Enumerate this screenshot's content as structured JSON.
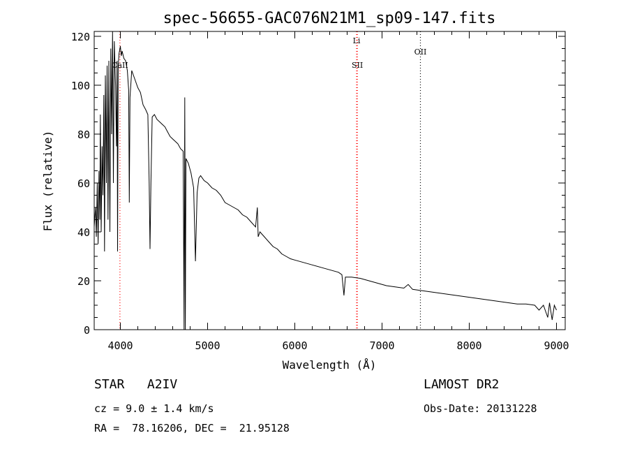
{
  "chart_data": {
    "type": "line",
    "title": "spec-56655-GAC076N21M1_sp09-147.fits",
    "xlabel": "Wavelength (Å)",
    "ylabel": "Flux (relative)",
    "xlim": [
      3700,
      9100
    ],
    "ylim": [
      0,
      122
    ],
    "xticks": [
      4000,
      5000,
      6000,
      7000,
      8000,
      9000
    ],
    "yticks": [
      0,
      20,
      40,
      60,
      80,
      100,
      120
    ],
    "grid": false,
    "line_colors": {
      "spectrum": "#000000",
      "marker": "#ff0000",
      "marker_ref": "#000000"
    },
    "line_markers": [
      {
        "label": "CaII",
        "x": 3995,
        "style": "red-dotted"
      },
      {
        "label": "Li",
        "x": 6708,
        "style": "red-dotted"
      },
      {
        "label": "SII",
        "x": 6717,
        "style": "red-dotted"
      },
      {
        "label": "OII",
        "x": 7440,
        "style": "black-dotted"
      }
    ],
    "series": [
      {
        "points": [
          [
            3700,
            42
          ],
          [
            3715,
            50
          ],
          [
            3725,
            38
          ],
          [
            3735,
            60
          ],
          [
            3745,
            35
          ],
          [
            3755,
            65
          ],
          [
            3765,
            45
          ],
          [
            3770,
            88
          ],
          [
            3780,
            40
          ],
          [
            3790,
            75
          ],
          [
            3800,
            55
          ],
          [
            3810,
            96
          ],
          [
            3818,
            32
          ],
          [
            3828,
            104
          ],
          [
            3840,
            60
          ],
          [
            3848,
            108
          ],
          [
            3858,
            45
          ],
          [
            3868,
            110
          ],
          [
            3880,
            40
          ],
          [
            3890,
            115
          ],
          [
            3900,
            80
          ],
          [
            3910,
            122
          ],
          [
            3920,
            60
          ],
          [
            3930,
            118
          ],
          [
            3945,
            100
          ],
          [
            3955,
            75
          ],
          [
            3962,
            110
          ],
          [
            3968,
            32
          ],
          [
            3975,
            108
          ],
          [
            3985,
            113
          ],
          [
            4000,
            116
          ],
          [
            4010,
            112
          ],
          [
            4020,
            114
          ],
          [
            4040,
            111
          ],
          [
            4060,
            110
          ],
          [
            4080,
            106
          ],
          [
            4095,
            98
          ],
          [
            4102,
            52
          ],
          [
            4110,
            95
          ],
          [
            4130,
            106
          ],
          [
            4150,
            104
          ],
          [
            4170,
            102
          ],
          [
            4200,
            99
          ],
          [
            4230,
            97
          ],
          [
            4260,
            92
          ],
          [
            4290,
            90
          ],
          [
            4315,
            88
          ],
          [
            4330,
            60
          ],
          [
            4340,
            33
          ],
          [
            4350,
            60
          ],
          [
            4365,
            87
          ],
          [
            4390,
            88
          ],
          [
            4420,
            86
          ],
          [
            4450,
            85
          ],
          [
            4480,
            84
          ],
          [
            4510,
            83
          ],
          [
            4540,
            81
          ],
          [
            4570,
            79
          ],
          [
            4600,
            78
          ],
          [
            4630,
            77
          ],
          [
            4660,
            76
          ],
          [
            4690,
            74
          ],
          [
            4720,
            73
          ],
          [
            4730,
            0
          ],
          [
            4738,
            95
          ],
          [
            4745,
            0
          ],
          [
            4752,
            70
          ],
          [
            4780,
            68
          ],
          [
            4810,
            64
          ],
          [
            4840,
            58
          ],
          [
            4861,
            28
          ],
          [
            4880,
            56
          ],
          [
            4900,
            62
          ],
          [
            4920,
            63
          ],
          [
            4960,
            61
          ],
          [
            5000,
            60
          ],
          [
            5050,
            58
          ],
          [
            5100,
            57
          ],
          [
            5150,
            55
          ],
          [
            5200,
            52
          ],
          [
            5250,
            51
          ],
          [
            5300,
            50
          ],
          [
            5350,
            49
          ],
          [
            5400,
            47
          ],
          [
            5450,
            46
          ],
          [
            5500,
            44
          ],
          [
            5550,
            42
          ],
          [
            5570,
            50
          ],
          [
            5580,
            38
          ],
          [
            5600,
            40
          ],
          [
            5650,
            38
          ],
          [
            5700,
            36
          ],
          [
            5750,
            34
          ],
          [
            5800,
            33
          ],
          [
            5850,
            31
          ],
          [
            5900,
            30
          ],
          [
            5950,
            29
          ],
          [
            6000,
            28.5
          ],
          [
            6100,
            27.5
          ],
          [
            6200,
            26.5
          ],
          [
            6300,
            25.5
          ],
          [
            6400,
            24.5
          ],
          [
            6500,
            23.5
          ],
          [
            6540,
            22.5
          ],
          [
            6563,
            14
          ],
          [
            6580,
            21.5
          ],
          [
            6650,
            21.5
          ],
          [
            6750,
            21
          ],
          [
            6850,
            20
          ],
          [
            6950,
            19
          ],
          [
            7050,
            18
          ],
          [
            7150,
            17.5
          ],
          [
            7250,
            17
          ],
          [
            7300,
            18.5
          ],
          [
            7350,
            16.5
          ],
          [
            7450,
            16
          ],
          [
            7550,
            15.5
          ],
          [
            7650,
            15
          ],
          [
            7750,
            14.5
          ],
          [
            7850,
            14
          ],
          [
            7950,
            13.5
          ],
          [
            8050,
            13
          ],
          [
            8150,
            12.5
          ],
          [
            8250,
            12
          ],
          [
            8350,
            11.5
          ],
          [
            8450,
            11
          ],
          [
            8550,
            10.5
          ],
          [
            8650,
            10.5
          ],
          [
            8750,
            10
          ],
          [
            8800,
            8
          ],
          [
            8850,
            10
          ],
          [
            8900,
            5
          ],
          [
            8920,
            11
          ],
          [
            8950,
            4
          ],
          [
            8975,
            10
          ],
          [
            9000,
            8
          ]
        ]
      }
    ]
  },
  "info": {
    "object": "STAR   A2IV",
    "survey": "LAMOST DR2",
    "cz": "cz = 9.0 ± 1.4 km/s",
    "obs_date": "Obs-Date: 20131228",
    "radec": "RA =  78.16206, DEC =  21.95128"
  }
}
